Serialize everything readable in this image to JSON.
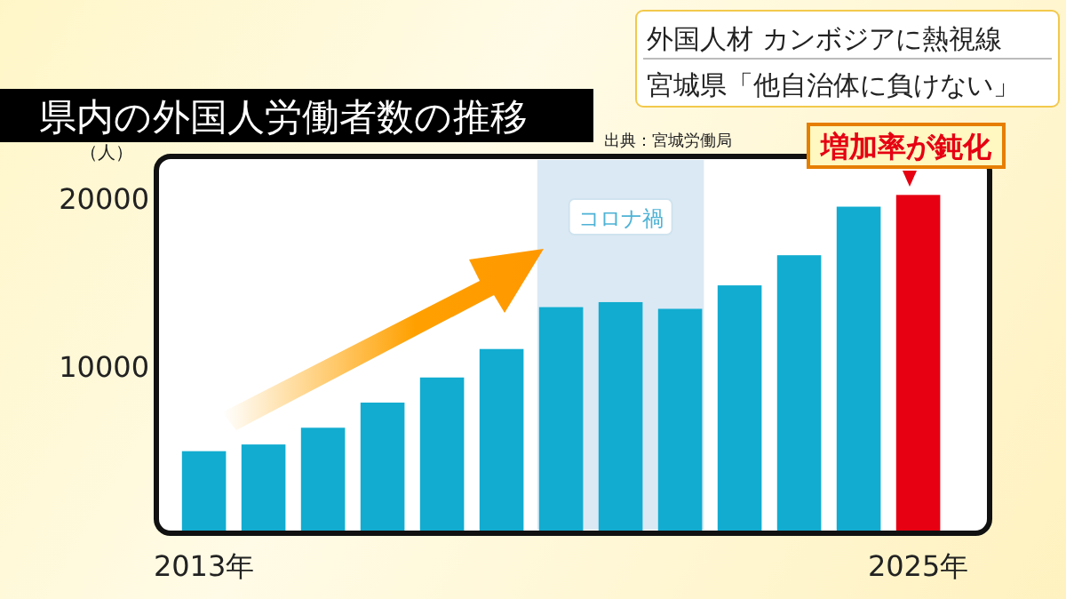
{
  "chart_data": {
    "type": "bar",
    "title": "県内の外国人労働者数の推移",
    "ylabel": "（人）",
    "annotations": [
      "外国人材 カンボジアに熱視線",
      "宮城県「他自治体に負けない」",
      "出典：宮城労働局",
      "増加率が鈍化"
    ],
    "x": [
      2013,
      2014,
      2015,
      2016,
      2017,
      2018,
      2019,
      2020,
      2021,
      2022,
      2023,
      2024,
      2025
    ],
    "values": [
      4900,
      5300,
      6300,
      7800,
      9300,
      11000,
      13500,
      13800,
      13400,
      14800,
      16600,
      19500,
      20200
    ],
    "colors": [
      "#12acd0",
      "#12acd0",
      "#12acd0",
      "#12acd0",
      "#12acd0",
      "#12acd0",
      "#12acd0",
      "#12acd0",
      "#12acd0",
      "#12acd0",
      "#12acd0",
      "#12acd0",
      "#e60012"
    ],
    "xlim": [
      2012.2,
      2026.2
    ],
    "xticks": [
      {
        "value": 2013,
        "label": "2013年"
      },
      {
        "value": 2025,
        "label": "2025年"
      }
    ],
    "ylim": [
      0,
      22500
    ],
    "yticks": [
      10000,
      20000
    ],
    "bands": [
      {
        "axis": "x",
        "from": 2018.6,
        "to": 2021.4,
        "label": "コロナ禍",
        "color": "#dbe9f4"
      }
    ]
  }
}
